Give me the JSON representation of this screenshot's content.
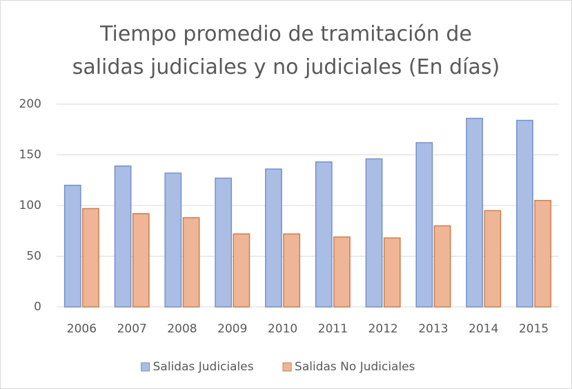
{
  "chart_data": {
    "type": "bar",
    "title": "Tiempo promedio de tramitación de\nsalidas judiciales y no judiciales (En días)",
    "categories": [
      "2006",
      "2007",
      "2008",
      "2009",
      "2010",
      "2011",
      "2012",
      "2013",
      "2014",
      "2015"
    ],
    "series": [
      {
        "name": "Salidas Judiciales",
        "color": "#a9bde5",
        "values": [
          120,
          139,
          132,
          127,
          136,
          143,
          146,
          162,
          186,
          184
        ]
      },
      {
        "name": "Salidas No Judiciales",
        "color": "#eeb596",
        "values": [
          97,
          92,
          88,
          72,
          72,
          69,
          68,
          80,
          95,
          105
        ]
      }
    ],
    "ylim": [
      0,
      200
    ],
    "yticks": [
      0,
      50,
      100,
      150,
      200
    ],
    "grid": true,
    "legend": "bottom"
  }
}
